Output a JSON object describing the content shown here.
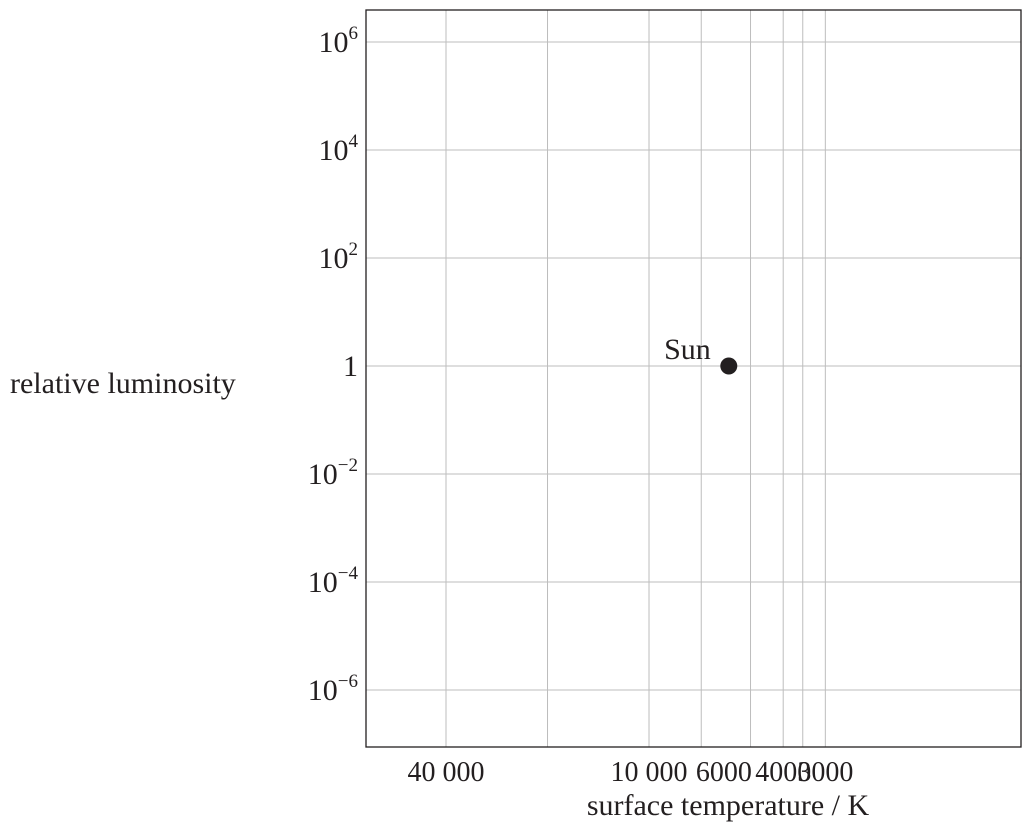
{
  "chart_data": {
    "type": "scatter",
    "title": "",
    "xlabel": "surface temperature / K",
    "ylabel": "relative luminosity",
    "x_scale": "log",
    "x_reversed": true,
    "y_scale": "log",
    "grid": true,
    "xlim": [
      50000,
      2700
    ],
    "ylim": [
      1e-07,
      10000000
    ],
    "x_grid_values": [
      40000,
      20000,
      10000,
      7000,
      5000,
      4000,
      3500,
      3000
    ],
    "x_ticks": [
      {
        "value": 40000,
        "label": "40 000"
      },
      {
        "value": 10000,
        "label": "10 000"
      },
      {
        "value": 6000,
        "label": "6000"
      },
      {
        "value": 4000,
        "label": "4000"
      },
      {
        "value": 3000,
        "label": "3000"
      }
    ],
    "y_ticks": [
      {
        "value": 1000000,
        "base": "10",
        "exp": "6"
      },
      {
        "value": 10000,
        "base": "10",
        "exp": "4"
      },
      {
        "value": 100,
        "base": "10",
        "exp": "2"
      },
      {
        "value": 1,
        "base": "1",
        "exp": ""
      },
      {
        "value": 0.01,
        "base": "10",
        "exp": "−2"
      },
      {
        "value": 0.0001,
        "base": "10",
        "exp": "−4"
      },
      {
        "value": 1e-06,
        "base": "10",
        "exp": "−6"
      }
    ],
    "points": [
      {
        "x": 5800,
        "y": 1,
        "label": "Sun",
        "color": "#231f20"
      }
    ]
  }
}
